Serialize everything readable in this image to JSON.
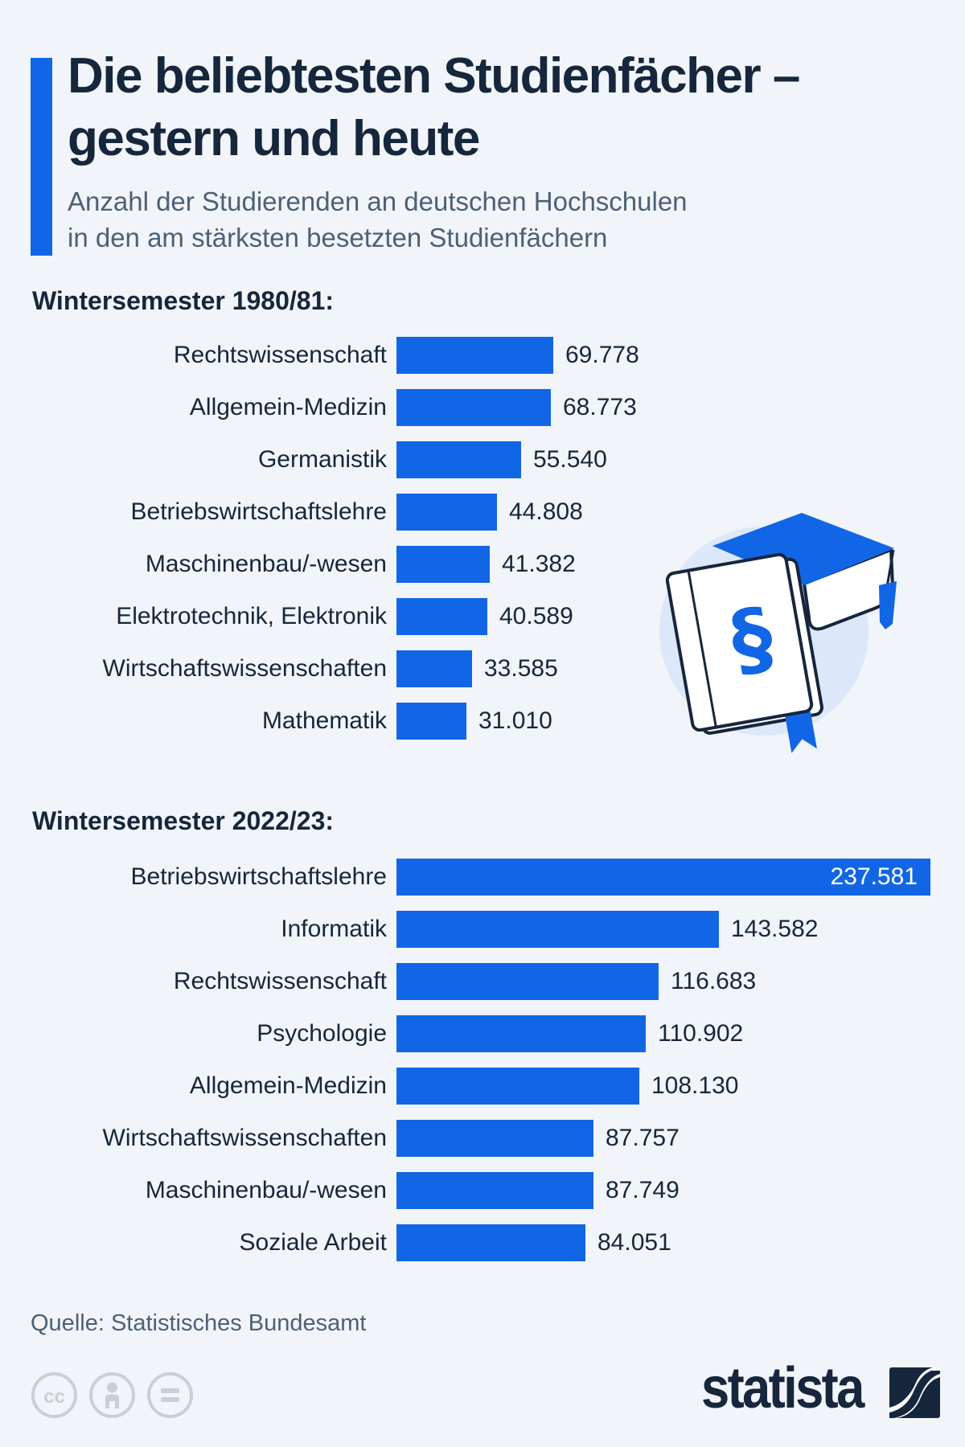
{
  "header": {
    "title_line1": "Die beliebtesten Studienfächer –",
    "title_line2": "gestern und heute",
    "subtitle_line1": "Anzahl der Studierenden an deutschen Hochschulen",
    "subtitle_line2": "in den am stärksten besetzten Studienfächern"
  },
  "chart_data": [
    {
      "type": "bar",
      "orientation": "horizontal",
      "title": "Wintersemester 1980/81:",
      "categories": [
        "Rechtswissenschaft",
        "Allgemein-Medizin",
        "Germanistik",
        "Betriebswirtschaftslehre",
        "Maschinenbau/-wesen",
        "Elektrotechnik, Elektronik",
        "Wirtschaftswissenschaften",
        "Mathematik"
      ],
      "values": [
        69778,
        68773,
        55540,
        44808,
        41382,
        40589,
        33585,
        31010
      ],
      "value_labels": [
        "69.778",
        "68.773",
        "55.540",
        "44.808",
        "41.382",
        "40.589",
        "33.585",
        "31.010"
      ],
      "xlim": [
        0,
        237581
      ],
      "grid": false,
      "legend": false
    },
    {
      "type": "bar",
      "orientation": "horizontal",
      "title": "Wintersemester 2022/23:",
      "categories": [
        "Betriebswirtschaftslehre",
        "Informatik",
        "Rechtswissenschaft",
        "Psychologie",
        "Allgemein-Medizin",
        "Wirtschaftswissenschaften",
        "Maschinenbau/-wesen",
        "Soziale Arbeit"
      ],
      "values": [
        237581,
        143582,
        116683,
        110902,
        108130,
        87757,
        87749,
        84051
      ],
      "value_labels": [
        "237.581",
        "143.582",
        "116.683",
        "110.902",
        "108.130",
        "87.757",
        "87.749",
        "84.051"
      ],
      "xlim": [
        0,
        237581
      ],
      "grid": false,
      "legend": false
    }
  ],
  "illustration": {
    "name": "law-book-with-graduation-cap",
    "symbol": "§"
  },
  "footer": {
    "source": "Quelle: Statistisches Bundesamt",
    "license_icons": [
      "cc",
      "attribution",
      "equals"
    ],
    "brand": "statista"
  },
  "colors": {
    "accent_blue": "#1166e5",
    "bar_blue": "#1166e5",
    "navy_text": "#16263c",
    "slate_text": "#4d6076",
    "background": "#f1f4f8",
    "illustration_circle": "#dce8fa",
    "icon_gray": "#c9ced8"
  }
}
